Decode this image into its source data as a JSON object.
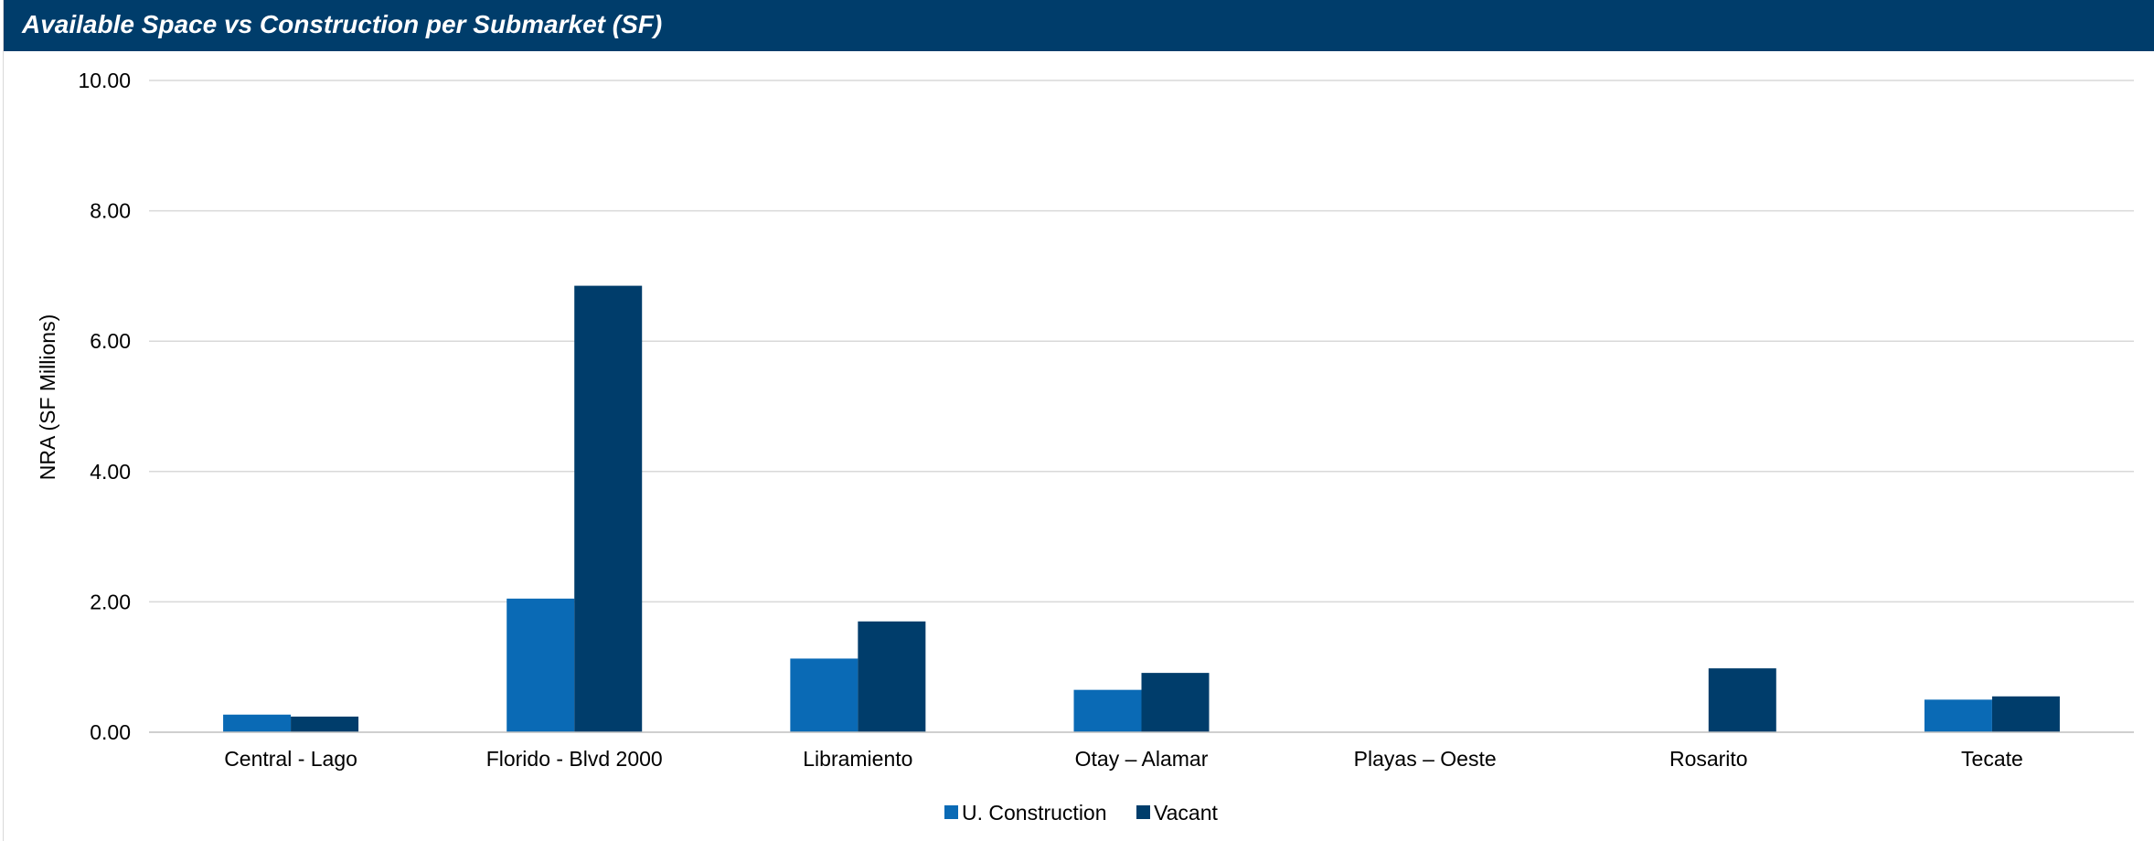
{
  "header": {
    "title": "Available Space vs Construction per Submarket (SF)",
    "background_color": "#003d6b"
  },
  "chart_data": {
    "type": "bar",
    "title": "Available Space vs Construction per Submarket (SF)",
    "xlabel": "",
    "ylabel": "NRA (SF Millions)",
    "ylim": [
      0,
      10
    ],
    "yticks": [
      "0.00",
      "2.00",
      "4.00",
      "6.00",
      "8.00",
      "10.00"
    ],
    "grid": true,
    "legend_position": "bottom",
    "categories": [
      "Central - Lago",
      "Florido - Blvd 2000",
      "Libramiento",
      "Otay – Alamar",
      "Playas – Oeste",
      "Rosarito",
      "Tecate"
    ],
    "series": [
      {
        "name": "U. Construction",
        "color": "#0a6ab5",
        "values": [
          0.27,
          2.05,
          1.13,
          0.65,
          0,
          0,
          0.5
        ]
      },
      {
        "name": "Vacant",
        "color": "#003d6b",
        "values": [
          0.24,
          6.85,
          1.7,
          0.91,
          0,
          0.98,
          0.55
        ]
      }
    ]
  }
}
